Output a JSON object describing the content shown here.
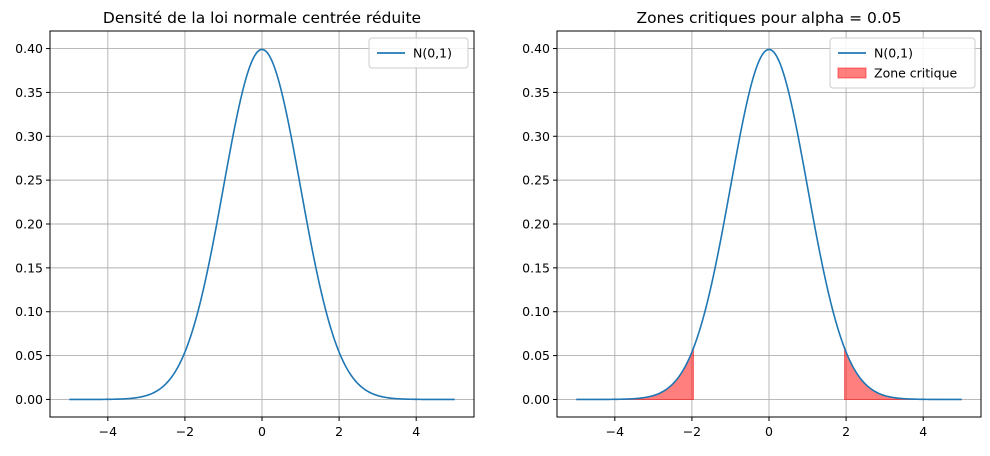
{
  "chart_data": [
    {
      "type": "line",
      "title": "Densité de la loi normale centrée réduite",
      "xlabel": "",
      "ylabel": "",
      "xlim": [
        -5.5,
        5.5
      ],
      "ylim": [
        -0.02,
        0.42
      ],
      "xticks": [
        -4,
        -2,
        0,
        2,
        4
      ],
      "xtick_labels": [
        "−4",
        "−2",
        "0",
        "2",
        "4"
      ],
      "yticks": [
        0.0,
        0.05,
        0.1,
        0.15,
        0.2,
        0.25,
        0.3,
        0.35,
        0.4
      ],
      "ytick_labels": [
        "0.00",
        "0.05",
        "0.10",
        "0.15",
        "0.20",
        "0.25",
        "0.30",
        "0.35",
        "0.40"
      ],
      "grid": true,
      "legend_position": "top-right",
      "series": [
        {
          "name": "N(0,1)",
          "color": "#1f77b4",
          "x": [
            -5,
            -4.5,
            -4,
            -3.5,
            -3,
            -2.75,
            -2.5,
            -2.25,
            -2,
            -1.75,
            -1.5,
            -1.25,
            -1,
            -0.75,
            -0.5,
            -0.25,
            0,
            0.25,
            0.5,
            0.75,
            1,
            1.25,
            1.5,
            1.75,
            2,
            2.25,
            2.5,
            2.75,
            3,
            3.5,
            4,
            4.5,
            5
          ],
          "y": [
            0.0,
            0.0,
            0.0001,
            0.0009,
            0.0044,
            0.0091,
            0.0175,
            0.0317,
            0.054,
            0.0863,
            0.1295,
            0.1826,
            0.242,
            0.3011,
            0.3521,
            0.3867,
            0.3989,
            0.3867,
            0.3521,
            0.3011,
            0.242,
            0.1826,
            0.1295,
            0.0863,
            0.054,
            0.0317,
            0.0175,
            0.0091,
            0.0044,
            0.0009,
            0.0001,
            0.0,
            0.0
          ]
        }
      ]
    },
    {
      "type": "line",
      "title": "Zones critiques pour alpha = 0.05",
      "xlabel": "",
      "ylabel": "",
      "xlim": [
        -5.5,
        5.5
      ],
      "ylim": [
        -0.02,
        0.42
      ],
      "xticks": [
        -4,
        -2,
        0,
        2,
        4
      ],
      "xtick_labels": [
        "−4",
        "−2",
        "0",
        "2",
        "4"
      ],
      "yticks": [
        0.0,
        0.05,
        0.1,
        0.15,
        0.2,
        0.25,
        0.3,
        0.35,
        0.4
      ],
      "ytick_labels": [
        "0.00",
        "0.05",
        "0.10",
        "0.15",
        "0.20",
        "0.25",
        "0.30",
        "0.35",
        "0.40"
      ],
      "grid": true,
      "legend_position": "top-right",
      "series": [
        {
          "name": "N(0,1)",
          "color": "#1f77b4",
          "x": [
            -5,
            -4.5,
            -4,
            -3.5,
            -3,
            -2.75,
            -2.5,
            -2.25,
            -2,
            -1.75,
            -1.5,
            -1.25,
            -1,
            -0.75,
            -0.5,
            -0.25,
            0,
            0.25,
            0.5,
            0.75,
            1,
            1.25,
            1.5,
            1.75,
            2,
            2.25,
            2.5,
            2.75,
            3,
            3.5,
            4,
            4.5,
            5
          ],
          "y": [
            0.0,
            0.0,
            0.0001,
            0.0009,
            0.0044,
            0.0091,
            0.0175,
            0.0317,
            0.054,
            0.0863,
            0.1295,
            0.1826,
            0.242,
            0.3011,
            0.3521,
            0.3867,
            0.3989,
            0.3867,
            0.3521,
            0.3011,
            0.242,
            0.1826,
            0.1295,
            0.0863,
            0.054,
            0.0317,
            0.0175,
            0.0091,
            0.0044,
            0.0009,
            0.0001,
            0.0,
            0.0
          ]
        }
      ],
      "shaded_regions": [
        {
          "name": "Zone critique",
          "color": "#ff0000",
          "opacity": 0.5,
          "x_from": -5,
          "x_to": -1.96
        },
        {
          "name": "Zone critique",
          "color": "#ff0000",
          "opacity": 0.5,
          "x_from": 1.96,
          "x_to": 5
        }
      ]
    }
  ]
}
